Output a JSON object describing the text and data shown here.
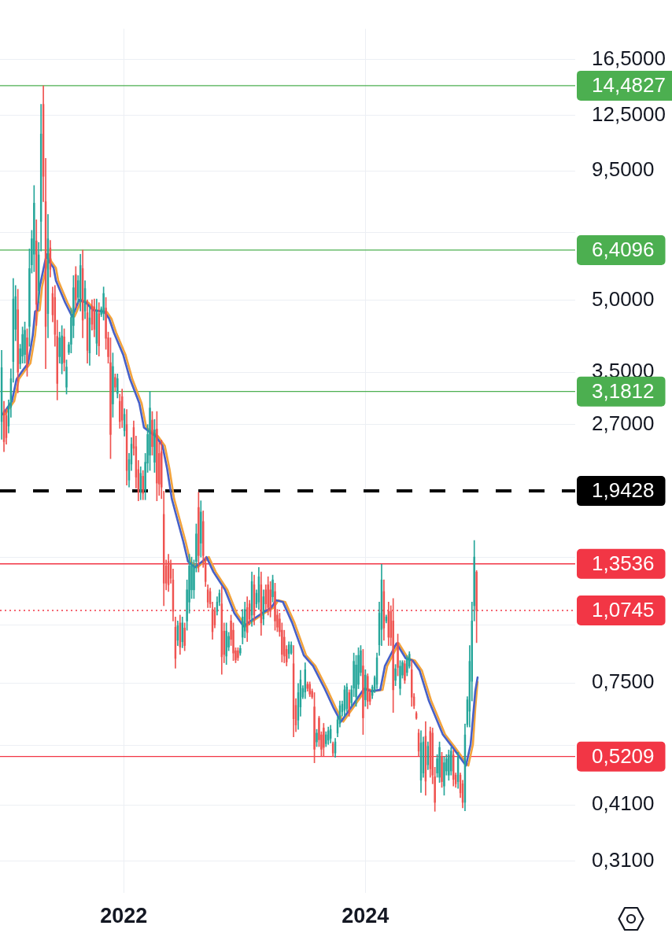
{
  "chart_data": {
    "type": "candlestick",
    "log": true,
    "grid": true,
    "xlim": [
      "2020-12-23",
      "2025-09-26"
    ],
    "xticks": [
      {
        "value": "2022-01-01",
        "label": "2022"
      },
      {
        "value": "2024-01-01",
        "label": "2024"
      }
    ],
    "ylim": [
      0.265,
      19.2
    ],
    "yticks": [
      {
        "value": 0.31,
        "label": "0,3100"
      },
      {
        "value": 0.41,
        "label": "0,4100"
      },
      {
        "value": 0.55,
        "label": null
      },
      {
        "value": 0.75,
        "label": "0,7500"
      },
      {
        "value": 1,
        "label": null
      },
      {
        "value": 1.4,
        "label": null
      },
      {
        "value": 2.7,
        "label": "2,7000"
      },
      {
        "value": 3.5,
        "label": "3,5000"
      },
      {
        "value": 5,
        "label": "5,0000"
      },
      {
        "value": 7,
        "label": null
      },
      {
        "value": 9.5,
        "label": "9,5000"
      },
      {
        "value": 12.5,
        "label": "12,5000"
      },
      {
        "value": 16.5,
        "label": "16,5000"
      }
    ],
    "x": [
      "2020-12-28",
      "2021-01-04",
      "2021-01-11",
      "2021-01-18",
      "2021-01-25",
      "2021-02-01",
      "2021-02-08",
      "2021-02-15",
      "2021-02-22",
      "2021-03-01",
      "2021-03-08",
      "2021-03-15",
      "2021-03-22",
      "2021-03-29",
      "2021-04-05",
      "2021-04-12",
      "2021-04-19",
      "2021-04-26",
      "2021-05-03",
      "2021-05-10",
      "2021-05-17",
      "2021-05-24",
      "2021-05-31",
      "2021-06-07",
      "2021-06-14",
      "2021-06-21",
      "2021-06-28",
      "2021-07-05",
      "2021-07-12",
      "2021-07-19",
      "2021-07-26",
      "2021-08-02",
      "2021-08-09",
      "2021-08-16",
      "2021-08-23",
      "2021-08-30",
      "2021-09-06",
      "2021-09-13",
      "2021-09-20",
      "2021-09-27",
      "2021-10-04",
      "2021-10-11",
      "2021-10-18",
      "2021-10-25",
      "2021-11-01",
      "2021-11-08",
      "2021-11-15",
      "2021-11-22",
      "2021-11-29",
      "2021-12-06",
      "2021-12-13",
      "2021-12-20",
      "2021-12-27",
      "2022-01-03",
      "2022-01-10",
      "2022-01-17",
      "2022-01-24",
      "2022-01-31",
      "2022-02-07",
      "2022-02-14",
      "2022-02-21",
      "2022-02-28",
      "2022-03-07",
      "2022-03-14",
      "2022-03-21",
      "2022-03-28",
      "2022-04-04",
      "2022-04-11",
      "2022-04-18",
      "2022-04-25",
      "2022-05-02",
      "2022-05-09",
      "2022-05-16",
      "2022-05-23",
      "2022-05-30",
      "2022-06-06",
      "2022-06-13",
      "2022-06-20",
      "2022-06-27",
      "2022-07-04",
      "2022-07-11",
      "2022-07-18",
      "2022-07-25",
      "2022-08-01",
      "2022-08-08",
      "2022-08-15",
      "2022-08-22",
      "2022-08-29",
      "2022-09-05",
      "2022-09-12",
      "2022-09-19",
      "2022-09-26",
      "2022-10-03",
      "2022-10-10",
      "2022-10-17",
      "2022-10-24",
      "2022-10-31",
      "2022-11-07",
      "2022-11-14",
      "2022-11-21",
      "2022-11-28",
      "2022-12-05",
      "2022-12-12",
      "2022-12-19",
      "2022-12-26",
      "2023-01-02",
      "2023-01-09",
      "2023-01-16",
      "2023-01-23",
      "2023-01-30",
      "2023-02-06",
      "2023-02-13",
      "2023-02-20",
      "2023-02-27",
      "2023-03-06",
      "2023-03-13",
      "2023-03-20",
      "2023-03-27",
      "2023-04-03",
      "2023-04-10",
      "2023-04-17",
      "2023-04-24",
      "2023-05-01",
      "2023-05-08",
      "2023-05-15",
      "2023-05-22",
      "2023-05-29",
      "2023-06-05",
      "2023-06-12",
      "2023-06-19",
      "2023-06-26",
      "2023-07-03",
      "2023-07-10",
      "2023-07-17",
      "2023-07-24",
      "2023-07-31",
      "2023-08-07",
      "2023-08-14",
      "2023-08-21",
      "2023-08-28",
      "2023-09-04",
      "2023-09-11",
      "2023-09-18",
      "2023-09-25",
      "2023-10-02",
      "2023-10-09",
      "2023-10-16",
      "2023-10-23",
      "2023-10-30",
      "2023-11-06",
      "2023-11-13",
      "2023-11-20",
      "2023-11-27",
      "2023-12-04",
      "2023-12-11",
      "2023-12-18",
      "2023-12-25",
      "2024-01-01",
      "2024-01-08",
      "2024-01-15",
      "2024-01-22",
      "2024-01-29",
      "2024-02-05",
      "2024-02-12",
      "2024-02-19",
      "2024-02-26",
      "2024-03-04",
      "2024-03-11",
      "2024-03-18",
      "2024-03-25",
      "2024-04-01",
      "2024-04-08",
      "2024-04-15",
      "2024-04-22",
      "2024-04-29",
      "2024-05-06",
      "2024-05-13",
      "2024-05-20",
      "2024-05-27",
      "2024-06-03",
      "2024-06-10",
      "2024-06-17",
      "2024-06-24",
      "2024-07-01",
      "2024-07-08",
      "2024-07-15",
      "2024-07-22",
      "2024-07-29",
      "2024-08-05",
      "2024-08-12",
      "2024-08-19",
      "2024-08-26",
      "2024-09-02",
      "2024-09-09",
      "2024-09-16",
      "2024-09-23",
      "2024-09-30",
      "2024-10-07",
      "2024-10-14",
      "2024-10-21",
      "2024-10-28",
      "2024-11-04",
      "2024-11-11",
      "2024-11-18",
      "2024-11-25",
      "2024-12-02"
    ],
    "ohlc": [
      [
        2.74,
        3.9,
        2.51,
        3.58
      ],
      [
        2.89,
        3.03,
        2.36,
        2.48
      ],
      [
        2.82,
        2.92,
        2.45,
        2.53
      ],
      [
        2.68,
        3.05,
        2.59,
        2.95
      ],
      [
        2.94,
        3.56,
        2.8,
        3.39
      ],
      [
        3.69,
        5.57,
        3.33,
        5.03
      ],
      [
        4.33,
        5.38,
        4.09,
        5.09
      ],
      [
        4.77,
        5.28,
        3.16,
        3.5
      ],
      [
        3.65,
        4.02,
        3.56,
        3.93
      ],
      [
        3.79,
        4.38,
        3.66,
        4.22
      ],
      [
        3.82,
        4.49,
        3.66,
        4.31
      ],
      [
        4.15,
        4.34,
        3.43,
        3.59
      ],
      [
        4.39,
        6.45,
        3.98,
        5.85
      ],
      [
        5.96,
        7.07,
        5.72,
        6.78
      ],
      [
        6.28,
        8.83,
        5.76,
        8.09
      ],
      [
        6.71,
        7.45,
        4.41,
        4.9
      ],
      [
        5.24,
        6.66,
        4.94,
        6.26
      ],
      [
        7.39,
        13.2,
        6.38,
        11.4
      ],
      [
        13.2,
        14.48,
        8.15,
        9.24
      ],
      [
        8.15,
        10.1,
        3.56,
        4.39
      ],
      [
        4.68,
        7.65,
        4.15,
        6.78
      ],
      [
        6.48,
        6.73,
        5.61,
        5.83
      ],
      [
        5.17,
        5.34,
        4.49,
        4.65
      ],
      [
        5.07,
        5.38,
        3.98,
        4.22
      ],
      [
        4.18,
        4.53,
        3.05,
        3.31
      ],
      [
        3.78,
        4.27,
        3.66,
        4.15
      ],
      [
        3.65,
        4.41,
        3.47,
        4.19
      ],
      [
        4.17,
        4.34,
        3.52,
        3.67
      ],
      [
        3.25,
        3.72,
        3.14,
        3.59
      ],
      [
        3.86,
        4.06,
        3.82,
        4.01
      ],
      [
        4.02,
        4.81,
        3.85,
        4.59
      ],
      [
        4.41,
        5.65,
        4.15,
        5.32
      ],
      [
        5.68,
        5.91,
        4.81,
        5.01
      ],
      [
        5.07,
        5.65,
        4.94,
        5.51
      ],
      [
        5.01,
        6.28,
        4.74,
        5.94
      ],
      [
        5.85,
        6.41,
        4.15,
        4.53
      ],
      [
        4.74,
        5.51,
        4.56,
        5.3
      ],
      [
        4.7,
        5.01,
        3.66,
        3.9
      ],
      [
        3.85,
        4.86,
        3.62,
        4.58
      ],
      [
        4.86,
        5.01,
        4.31,
        4.44
      ],
      [
        4.84,
        5.03,
        4.17,
        4.33
      ],
      [
        4.04,
        5.03,
        3.82,
        4.75
      ],
      [
        4.68,
        4.94,
        3.79,
        3.99
      ],
      [
        4.66,
        4.84,
        4.61,
        4.79
      ],
      [
        4.68,
        5.34,
        4.53,
        5.17
      ],
      [
        4.81,
        5.07,
        3.92,
        4.14
      ],
      [
        4.15,
        4.27,
        3.66,
        3.78
      ],
      [
        3.67,
        4.15,
        2.28,
        2.57
      ],
      [
        2.99,
        3.85,
        2.8,
        3.6
      ],
      [
        3.41,
        3.47,
        3.19,
        3.25
      ],
      [
        3.15,
        3.47,
        3.08,
        3.39
      ],
      [
        3.03,
        3.14,
        2.65,
        2.74
      ],
      [
        3.1,
        3.22,
        2.66,
        2.76
      ],
      [
        2.62,
        2.92,
        2.55,
        2.84
      ],
      [
        2.7,
        2.91,
        2,
        2.15
      ],
      [
        2.05,
        2.34,
        1.98,
        2.27
      ],
      [
        2.22,
        2.53,
        2.15,
        2.45
      ],
      [
        2.66,
        2.75,
        2.32,
        2.4
      ],
      [
        2.42,
        2.55,
        1.97,
        2.08
      ],
      [
        2.16,
        2.26,
        1.85,
        1.93
      ],
      [
        1.93,
        2.19,
        1.86,
        2.12
      ],
      [
        2.09,
        2.15,
        1.86,
        1.92
      ],
      [
        1.95,
        2.34,
        1.86,
        2.24
      ],
      [
        2.23,
        2.7,
        2.13,
        2.57
      ],
      [
        2.32,
        3.18,
        2.15,
        2.93
      ],
      [
        2.76,
        2.88,
        2.32,
        2.42
      ],
      [
        2.24,
        2.77,
        2.13,
        2.63
      ],
      [
        2.64,
        2.88,
        1.85,
        2.02
      ],
      [
        2.34,
        2.47,
        1.9,
        2.01
      ],
      [
        2.36,
        2.5,
        1.87,
        1.98
      ],
      [
        1.73,
        1.94,
        1.1,
        1.23
      ],
      [
        1.34,
        1.38,
        1.19,
        1.23
      ],
      [
        1.37,
        1.42,
        1.18,
        1.22
      ],
      [
        1.35,
        1.38,
        1.23,
        1.26
      ],
      [
        1.25,
        1.32,
        1.02,
        1.07
      ],
      [
        0.989,
        1.04,
        0.807,
        0.847
      ],
      [
        0.927,
        1.02,
        0.903,
        0.996
      ],
      [
        1.01,
        1.05,
        0.864,
        0.896
      ],
      [
        0.92,
        1.04,
        0.893,
        1.01
      ],
      [
        0.985,
        1.01,
        0.88,
        0.903
      ],
      [
        1.02,
        1.25,
        0.974,
        1.19
      ],
      [
        1.12,
        1.42,
        1.06,
        1.34
      ],
      [
        1.19,
        1.4,
        1.14,
        1.35
      ],
      [
        1.19,
        1.38,
        1.14,
        1.33
      ],
      [
        1.37,
        1.65,
        1.3,
        1.57
      ],
      [
        1.79,
        1.93,
        1.3,
        1.41
      ],
      [
        1.5,
        1.85,
        1.4,
        1.75
      ],
      [
        1.67,
        1.76,
        1.33,
        1.41
      ],
      [
        1.36,
        1.4,
        1.21,
        1.24
      ],
      [
        1.19,
        1.22,
        1.09,
        1.12
      ],
      [
        1.18,
        1.2,
        1.09,
        1.11
      ],
      [
        1.08,
        1.12,
        0.931,
        0.967
      ],
      [
        1.07,
        1.09,
        0.985,
        1
      ],
      [
        1.07,
        1.15,
        1.05,
        1.12
      ],
      [
        1.12,
        1.19,
        1.1,
        1.17
      ],
      [
        1.11,
        1.21,
        0.783,
        0.854
      ],
      [
        0.97,
        1.01,
        0.829,
        0.864
      ],
      [
        0.857,
        1.01,
        0.822,
        0.97
      ],
      [
        0.896,
        0.964,
        0.88,
        0.945
      ],
      [
        1.02,
        1.05,
        0.903,
        0.931
      ],
      [
        0.974,
        1.01,
        0.838,
        0.87
      ],
      [
        0.88,
        0.893,
        0.829,
        0.841
      ],
      [
        0.88,
        0.893,
        0.838,
        0.85
      ],
      [
        0.87,
        0.903,
        0.86,
        0.89
      ],
      [
        0.941,
        1.08,
        0.91,
        1.04
      ],
      [
        0.97,
        1.12,
        0.938,
        1.08
      ],
      [
        1.09,
        1.15,
        0.921,
        0.963
      ],
      [
        1.11,
        1.13,
        1,
        1.03
      ],
      [
        1.05,
        1.3,
        0.993,
        1.24
      ],
      [
        1.22,
        1.28,
        1,
        1.05
      ],
      [
        1.11,
        1.19,
        1.09,
        1.17
      ],
      [
        1.12,
        1.33,
        1.08,
        1.27
      ],
      [
        1.22,
        1.3,
        0.95,
        1.01
      ],
      [
        1.03,
        1.19,
        1,
        1.15
      ],
      [
        1.19,
        1.22,
        1.08,
        1.11
      ],
      [
        1.22,
        1.27,
        1.05,
        1.09
      ],
      [
        1.19,
        1.24,
        1.04,
        1.07
      ],
      [
        1.15,
        1.28,
        1.12,
        1.25
      ],
      [
        1.18,
        1.23,
        0.974,
        1.02
      ],
      [
        1.05,
        1.08,
        0.967,
        0.989
      ],
      [
        1.03,
        1.06,
        0.945,
        0.967
      ],
      [
        0.974,
        1.01,
        0.832,
        0.864
      ],
      [
        0.941,
        0.974,
        0.829,
        0.857
      ],
      [
        0.886,
        0.903,
        0.816,
        0.832
      ],
      [
        0.867,
        0.92,
        0.847,
        0.906
      ],
      [
        0.87,
        0.92,
        0.864,
        0.905
      ],
      [
        0.825,
        0.903,
        0.574,
        0.628
      ],
      [
        0.671,
        0.694,
        0.589,
        0.609
      ],
      [
        0.624,
        0.748,
        0.596,
        0.715
      ],
      [
        0.666,
        0.799,
        0.636,
        0.762
      ],
      [
        0.7,
        0.74,
        0.694,
        0.73
      ],
      [
        0.717,
        0.829,
        0.694,
        0.801
      ],
      [
        0.745,
        0.754,
        0.72,
        0.73
      ],
      [
        0.745,
        0.754,
        0.701,
        0.71
      ],
      [
        0.72,
        0.728,
        0.694,
        0.7
      ],
      [
        0.666,
        0.715,
        0.505,
        0.54
      ],
      [
        0.56,
        0.596,
        0.547,
        0.585
      ],
      [
        0.63,
        0.636,
        0.547,
        0.566
      ],
      [
        0.58,
        0.589,
        0.523,
        0.54
      ],
      [
        0.6,
        0.614,
        0.523,
        0.545
      ],
      [
        0.555,
        0.589,
        0.547,
        0.58
      ],
      [
        0.565,
        0.603,
        0.553,
        0.592
      ],
      [
        0.57,
        0.608,
        0.557,
        0.596
      ],
      [
        0.555,
        0.56,
        0.523,
        0.53
      ],
      [
        0.53,
        0.57,
        0.519,
        0.56
      ],
      [
        0.585,
        0.636,
        0.574,
        0.625
      ],
      [
        0.613,
        0.686,
        0.603,
        0.67
      ],
      [
        0.65,
        0.686,
        0.636,
        0.675
      ],
      [
        0.655,
        0.74,
        0.636,
        0.725
      ],
      [
        0.66,
        0.748,
        0.651,
        0.735
      ],
      [
        0.715,
        0.725,
        0.636,
        0.65
      ],
      [
        0.68,
        0.74,
        0.668,
        0.725
      ],
      [
        0.731,
        0.87,
        0.701,
        0.835
      ],
      [
        0.7,
        0.86,
        0.668,
        0.82
      ],
      [
        0.745,
        0.893,
        0.729,
        0.86
      ],
      [
        0.79,
        0.903,
        0.777,
        0.88
      ],
      [
        0.816,
        0.886,
        0.581,
        0.631
      ],
      [
        0.69,
        0.801,
        0.668,
        0.78
      ],
      [
        0.775,
        0.785,
        0.66,
        0.685
      ],
      [
        0.715,
        0.728,
        0.673,
        0.685
      ],
      [
        0.705,
        0.742,
        0.694,
        0.735
      ],
      [
        0.725,
        0.777,
        0.715,
        0.77
      ],
      [
        0.745,
        0.87,
        0.729,
        0.85
      ],
      [
        0.906,
        1.12,
        0.86,
        1.06
      ],
      [
        0.978,
        1.35,
        0.903,
        1.25
      ],
      [
        1.18,
        1.25,
        0.927,
        0.985
      ],
      [
        1.02,
        1.05,
        1.01,
        1.04
      ],
      [
        1.07,
        1.12,
        0.903,
        0.941
      ],
      [
        1.07,
        1.1,
        0.903,
        0.94
      ],
      [
        1.02,
        1.14,
        0.648,
        0.725
      ],
      [
        0.76,
        0.822,
        0.74,
        0.805
      ],
      [
        0.917,
        0.956,
        0.777,
        0.81
      ],
      [
        0.73,
        0.838,
        0.707,
        0.815
      ],
      [
        0.78,
        0.838,
        0.768,
        0.83
      ],
      [
        0.825,
        0.838,
        0.748,
        0.76
      ],
      [
        0.79,
        0.86,
        0.777,
        0.85
      ],
      [
        0.815,
        0.876,
        0.807,
        0.865
      ],
      [
        0.801,
        0.838,
        0.668,
        0.699
      ],
      [
        0.7,
        0.712,
        0.66,
        0.67
      ],
      [
        0.645,
        0.651,
        0.626,
        0.63
      ],
      [
        0.585,
        0.596,
        0.523,
        0.535
      ],
      [
        0.463,
        0.592,
        0.436,
        0.557
      ],
      [
        0.48,
        0.574,
        0.47,
        0.56
      ],
      [
        0.576,
        0.619,
        0.43,
        0.461
      ],
      [
        0.5,
        0.56,
        0.488,
        0.548
      ],
      [
        0.59,
        0.603,
        0.47,
        0.49
      ],
      [
        0.585,
        0.6,
        0.455,
        0.475
      ],
      [
        0.471,
        0.494,
        0.397,
        0.415
      ],
      [
        0.48,
        0.526,
        0.47,
        0.515
      ],
      [
        0.47,
        0.56,
        0.458,
        0.545
      ],
      [
        0.52,
        0.532,
        0.447,
        0.46
      ],
      [
        0.45,
        0.52,
        0.43,
        0.505
      ],
      [
        0.485,
        0.526,
        0.475,
        0.515
      ],
      [
        0.475,
        0.538,
        0.463,
        0.525
      ],
      [
        0.485,
        0.545,
        0.475,
        0.535
      ],
      [
        0.525,
        0.538,
        0.45,
        0.465
      ],
      [
        0.475,
        0.48,
        0.447,
        0.455
      ],
      [
        0.46,
        0.532,
        0.445,
        0.52
      ],
      [
        0.475,
        0.48,
        0.425,
        0.435
      ],
      [
        0.455,
        0.463,
        0.404,
        0.415
      ],
      [
        0.415,
        0.612,
        0.398,
        0.58
      ],
      [
        0.61,
        0.701,
        0.603,
        0.69
      ],
      [
        0.652,
        0.903,
        0.603,
        0.835
      ],
      [
        0.756,
        1.12,
        0.686,
        1.02
      ],
      [
        1.1,
        1.52,
        1.02,
        1.4
      ],
      [
        1.3,
        1.31,
        0.916,
        1.0745
      ]
    ],
    "colors": [
      "#26a69a",
      "#ef5350",
      "#ef5350",
      "#26a69a",
      "#26a69a",
      "#26a69a",
      "#26a69a",
      "#ef5350",
      "#26a69a",
      "#26a69a",
      "#26a69a",
      "#ef5350",
      "#26a69a",
      "#26a69a",
      "#26a69a",
      "#ef5350",
      "#26a69a",
      "#26a69a",
      "#ef5350",
      "#ef5350",
      "#26a69a",
      "#ef5350",
      "#ef5350",
      "#ef5350",
      "#ef5350",
      "#26a69a",
      "#26a69a",
      "#ef5350",
      "#26a69a",
      "#26a69a",
      "#26a69a",
      "#26a69a",
      "#ef5350",
      "#26a69a",
      "#26a69a",
      "#ef5350",
      "#26a69a",
      "#ef5350",
      "#26a69a",
      "#ef5350",
      "#ef5350",
      "#26a69a",
      "#ef5350",
      "#26a69a",
      "#26a69a",
      "#ef5350",
      "#ef5350",
      "#ef5350",
      "#26a69a",
      "#ef5350",
      "#26a69a",
      "#ef5350",
      "#ef5350",
      "#26a69a",
      "#ef5350",
      "#26a69a",
      "#26a69a",
      "#ef5350",
      "#ef5350",
      "#ef5350",
      "#26a69a",
      "#ef5350",
      "#26a69a",
      "#26a69a",
      "#26a69a",
      "#ef5350",
      "#26a69a",
      "#ef5350",
      "#ef5350",
      "#ef5350",
      "#ef5350",
      "#ef5350",
      "#ef5350",
      "#ef5350",
      "#ef5350",
      "#ef5350",
      "#26a69a",
      "#ef5350",
      "#26a69a",
      "#ef5350",
      "#26a69a",
      "#26a69a",
      "#26a69a",
      "#26a69a",
      "#26a69a",
      "#ef5350",
      "#26a69a",
      "#ef5350",
      "#ef5350",
      "#ef5350",
      "#ef5350",
      "#ef5350",
      "#ef5350",
      "#26a69a",
      "#26a69a",
      "#ef5350",
      "#ef5350",
      "#26a69a",
      "#26a69a",
      "#ef5350",
      "#ef5350",
      "#ef5350",
      "#ef5350",
      "#26a69a",
      "#26a69a",
      "#26a69a",
      "#ef5350",
      "#ef5350",
      "#26a69a",
      "#ef5350",
      "#26a69a",
      "#26a69a",
      "#ef5350",
      "#26a69a",
      "#ef5350",
      "#ef5350",
      "#ef5350",
      "#26a69a",
      "#ef5350",
      "#ef5350",
      "#ef5350",
      "#ef5350",
      "#ef5350",
      "#ef5350",
      "#26a69a",
      "#26a69a",
      "#ef5350",
      "#ef5350",
      "#26a69a",
      "#26a69a",
      "#26a69a",
      "#26a69a",
      "#ef5350",
      "#ef5350",
      "#ef5350",
      "#ef5350",
      "#26a69a",
      "#ef5350",
      "#ef5350",
      "#ef5350",
      "#26a69a",
      "#26a69a",
      "#26a69a",
      "#ef5350",
      "#26a69a",
      "#26a69a",
      "#26a69a",
      "#26a69a",
      "#26a69a",
      "#26a69a",
      "#ef5350",
      "#26a69a",
      "#26a69a",
      "#26a69a",
      "#26a69a",
      "#26a69a",
      "#ef5350",
      "#26a69a",
      "#ef5350",
      "#ef5350",
      "#26a69a",
      "#26a69a",
      "#26a69a",
      "#26a69a",
      "#26a69a",
      "#ef5350",
      "#26a69a",
      "#ef5350",
      "#ef5350",
      "#ef5350",
      "#26a69a",
      "#ef5350",
      "#26a69a",
      "#26a69a",
      "#ef5350",
      "#26a69a",
      "#26a69a",
      "#ef5350",
      "#ef5350",
      "#ef5350",
      "#ef5350",
      "#26a69a",
      "#26a69a",
      "#ef5350",
      "#26a69a",
      "#ef5350",
      "#ef5350",
      "#ef5350",
      "#26a69a",
      "#26a69a",
      "#ef5350",
      "#26a69a",
      "#26a69a",
      "#26a69a",
      "#26a69a",
      "#ef5350",
      "#ef5350",
      "#26a69a",
      "#ef5350",
      "#ef5350",
      "#26a69a",
      "#26a69a",
      "#26a69a",
      "#26a69a",
      "#26a69a",
      "#ef5350"
    ],
    "series": [
      {
        "type": "line",
        "color": "#4660c8",
        "x": [
          "2020-12-31",
          "2021-01-28",
          "2021-02-11",
          "2021-03-04",
          "2021-03-18",
          "2021-04-01",
          "2021-04-08",
          "2021-04-15",
          "2021-04-22",
          "2021-05-06",
          "2021-05-13",
          "2021-05-20",
          "2021-06-03",
          "2021-06-10",
          "2021-07-08",
          "2021-07-29",
          "2021-08-05",
          "2021-08-19",
          "2021-09-09",
          "2021-09-30",
          "2021-11-04",
          "2021-11-18",
          "2021-12-02",
          "2021-12-30",
          "2022-01-20",
          "2022-02-17",
          "2022-03-03",
          "2022-03-24",
          "2022-04-07",
          "2022-04-28",
          "2022-05-12",
          "2022-05-26",
          "2022-06-30",
          "2022-07-14",
          "2022-08-04",
          "2022-09-01",
          "2022-09-08",
          "2022-09-29",
          "2022-11-03",
          "2022-12-01",
          "2022-12-29",
          "2023-01-19",
          "2023-02-23",
          "2023-03-23",
          "2023-04-06",
          "2023-04-27",
          "2023-05-25",
          "2023-06-29",
          "2023-07-27",
          "2023-08-31",
          "2023-09-28",
          "2023-10-19",
          "2023-11-16",
          "2023-12-28",
          "2024-01-18",
          "2024-02-15",
          "2024-02-29",
          "2024-04-04",
          "2024-05-02",
          "2024-05-23",
          "2024-06-13",
          "2024-07-11",
          "2024-08-22",
          "2024-09-19",
          "2024-10-31",
          "2024-11-14",
          "2024-11-28",
          "2024-12-05"
        ],
        "values": [
          2.84,
          3.03,
          3.38,
          3.55,
          3.66,
          4.2,
          4.73,
          4.76,
          5.34,
          5.96,
          6.28,
          6.06,
          5.87,
          5.51,
          4.94,
          4.61,
          4.73,
          5.01,
          4.94,
          4.76,
          4.72,
          4.56,
          4.26,
          3.82,
          3.38,
          3,
          2.66,
          2.59,
          2.55,
          2.43,
          2.17,
          1.87,
          1.51,
          1.37,
          1.33,
          1.38,
          1.4,
          1.3,
          1.19,
          1.06,
          0.993,
          1.02,
          1.06,
          1.09,
          1.13,
          1.12,
          1.01,
          0.86,
          0.816,
          0.729,
          0.66,
          0.619,
          0.66,
          0.729,
          0.72,
          0.725,
          0.816,
          0.913,
          0.847,
          0.838,
          0.797,
          0.686,
          0.581,
          0.547,
          0.498,
          0.553,
          0.72,
          0.771
        ]
      },
      {
        "type": "line",
        "color": "#f2a33c",
        "x": [
          "2021-01-07",
          "2021-02-04",
          "2021-02-18",
          "2021-03-11",
          "2021-03-25",
          "2021-04-08",
          "2021-04-15",
          "2021-04-22",
          "2021-04-29",
          "2021-05-13",
          "2021-05-20",
          "2021-05-27",
          "2021-06-10",
          "2021-06-17",
          "2021-07-15",
          "2021-08-05",
          "2021-08-12",
          "2021-08-26",
          "2021-09-16",
          "2021-10-07",
          "2021-11-11",
          "2021-11-25",
          "2021-12-09",
          "2022-01-06",
          "2022-01-27",
          "2022-02-24",
          "2022-03-10",
          "2022-03-31",
          "2022-04-14",
          "2022-05-05",
          "2022-05-19",
          "2022-06-02",
          "2022-07-07",
          "2022-07-21",
          "2022-08-11",
          "2022-09-08",
          "2022-09-15",
          "2022-10-06",
          "2022-11-10",
          "2022-12-08",
          "2023-01-05",
          "2023-01-26",
          "2023-03-02",
          "2023-03-30",
          "2023-04-13",
          "2023-05-04",
          "2023-06-01",
          "2023-07-06",
          "2023-08-03",
          "2023-09-07",
          "2023-10-05",
          "2023-10-26",
          "2023-11-23",
          "2024-01-04",
          "2024-01-25",
          "2024-02-22",
          "2024-03-07",
          "2024-04-11",
          "2024-05-09",
          "2024-05-30",
          "2024-06-20",
          "2024-07-18",
          "2024-08-29",
          "2024-09-26",
          "2024-11-07",
          "2024-11-21",
          "2024-11-28",
          "2024-12-05"
        ],
        "values": [
          2.84,
          3.03,
          3.38,
          3.55,
          3.66,
          4.2,
          4.73,
          4.76,
          5.34,
          5.96,
          6.28,
          6.06,
          5.87,
          5.51,
          4.94,
          4.61,
          4.73,
          5.01,
          4.94,
          4.76,
          4.72,
          4.56,
          4.26,
          3.82,
          3.38,
          3,
          2.66,
          2.59,
          2.55,
          2.43,
          2.17,
          1.87,
          1.51,
          1.37,
          1.33,
          1.38,
          1.4,
          1.3,
          1.19,
          1.06,
          0.993,
          1.02,
          1.06,
          1.09,
          1.13,
          1.12,
          1.01,
          0.86,
          0.816,
          0.729,
          0.66,
          0.619,
          0.66,
          0.729,
          0.72,
          0.725,
          0.816,
          0.913,
          0.847,
          0.838,
          0.797,
          0.686,
          0.581,
          0.547,
          0.498,
          0.553,
          0.66,
          0.754
        ]
      }
    ],
    "ref_lines": [
      {
        "axis": "y",
        "value": 14.4827,
        "label": "14,4827",
        "color": "#4caf50"
      },
      {
        "axis": "y",
        "value": 6.4096,
        "label": "6,4096",
        "color": "#4caf50"
      },
      {
        "axis": "y",
        "value": 3.1812,
        "label": "3,1812",
        "color": "#4caf50"
      },
      {
        "axis": "y",
        "value": 1.9428,
        "label": "1,9428",
        "color": "#000000",
        "line_style": "dashed"
      },
      {
        "axis": "y",
        "value": 1.3536,
        "label": "1,3536",
        "color": "#f23645"
      },
      {
        "axis": "y",
        "value": 1.0745,
        "label": "1,0745",
        "color": "#f23645",
        "line_style": "dotted"
      },
      {
        "axis": "y",
        "value": 0.5209,
        "label": "0,5209",
        "color": "#f23645"
      }
    ]
  }
}
